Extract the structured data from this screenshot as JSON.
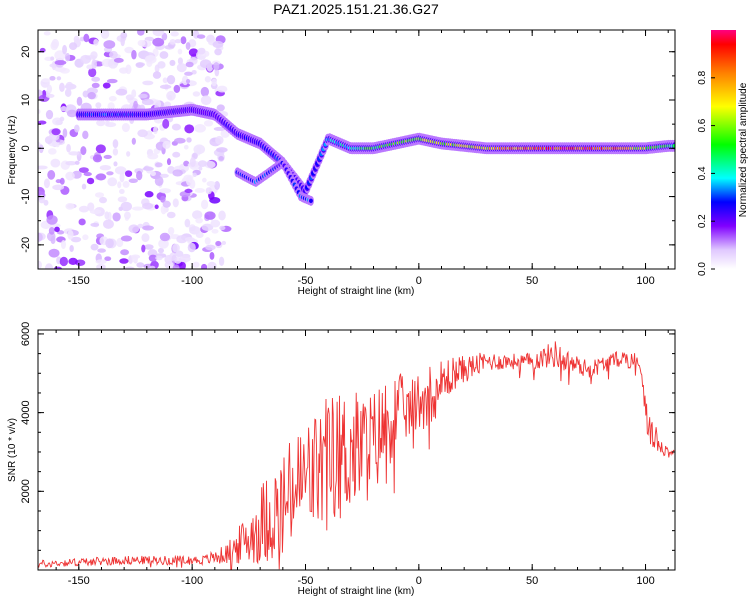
{
  "title": "PAZ1.2025.151.21.36.G27",
  "chart_data": [
    {
      "type": "heatmap",
      "xlabel": "Height of straight line (km)",
      "ylabel": "Frequency (Hz)",
      "xlim": [
        -168,
        113
      ],
      "ylim": [
        -25,
        24.5
      ],
      "xticks": [
        "-150",
        "-100",
        "-50",
        "0",
        "50",
        "100"
      ],
      "yticks": [
        "-20",
        "-10",
        "0",
        "10",
        "20"
      ],
      "colorbar": {
        "label": "Normalized spectral amplitude",
        "range": [
          0,
          1
        ],
        "ticks": [
          "0.0",
          "0.2",
          "0.4",
          "0.6",
          "0.8"
        ]
      },
      "ridge": [
        {
          "x": -150,
          "freq": 7,
          "amp": 0.25
        },
        {
          "x": -140,
          "freq": 7,
          "amp": 0.3
        },
        {
          "x": -120,
          "freq": 7,
          "amp": 0.25
        },
        {
          "x": -100,
          "freq": 8,
          "amp": 0.2
        },
        {
          "x": -90,
          "freq": 7,
          "amp": 0.2
        },
        {
          "x": -80,
          "freq": 3,
          "amp": 0.25
        },
        {
          "x": -70,
          "freq": 1,
          "amp": 0.25
        },
        {
          "x": -60,
          "freq": -3,
          "amp": 0.3
        },
        {
          "x": -50,
          "freq": -9,
          "amp": 0.25
        },
        {
          "x": -40,
          "freq": 2,
          "amp": 0.35
        },
        {
          "x": -30,
          "freq": 0,
          "amp": 0.4
        },
        {
          "x": -20,
          "freq": 0,
          "amp": 0.5
        },
        {
          "x": -10,
          "freq": 1,
          "amp": 0.55
        },
        {
          "x": 0,
          "freq": 2,
          "amp": 0.6
        },
        {
          "x": 10,
          "freq": 1,
          "amp": 0.6
        },
        {
          "x": 20,
          "freq": 0.5,
          "amp": 0.65
        },
        {
          "x": 30,
          "freq": 0,
          "amp": 0.7
        },
        {
          "x": 40,
          "freq": 0,
          "amp": 0.75
        },
        {
          "x": 50,
          "freq": 0,
          "amp": 0.85
        },
        {
          "x": 60,
          "freq": 0,
          "amp": 0.9
        },
        {
          "x": 70,
          "freq": 0,
          "amp": 0.88
        },
        {
          "x": 80,
          "freq": 0,
          "amp": 0.85
        },
        {
          "x": 90,
          "freq": 0,
          "amp": 0.75
        },
        {
          "x": 100,
          "freq": 0,
          "amp": 0.6
        },
        {
          "x": 110,
          "freq": 0.5,
          "amp": 0.45
        }
      ],
      "branch": [
        {
          "x": -80,
          "freq": -5,
          "amp": 0.25
        },
        {
          "x": -72,
          "freq": -7,
          "amp": 0.3
        },
        {
          "x": -60,
          "freq": -3,
          "amp": 0.25
        },
        {
          "x": -52,
          "freq": -10,
          "amp": 0.3
        },
        {
          "x": -47,
          "freq": -11,
          "amp": 0.3
        }
      ]
    },
    {
      "type": "line",
      "xlabel": "Height of straight line (km)",
      "ylabel": "SNR (10 * v/v)",
      "xlim": [
        -168,
        113
      ],
      "ylim": [
        0,
        6100
      ],
      "xticks": [
        "-150",
        "-100",
        "-50",
        "0",
        "50",
        "100"
      ],
      "yticks": [
        "2000",
        "4000",
        "6000"
      ],
      "series": [
        {
          "color": "#ee3333",
          "x": [
            -168,
            -150,
            -130,
            -110,
            -95,
            -85,
            -80,
            -75,
            -70,
            -65,
            -60,
            -55,
            -50,
            -45,
            -40,
            -35,
            -30,
            -25,
            -20,
            -15,
            -10,
            -8,
            -5,
            0,
            5,
            10,
            15,
            20,
            25,
            30,
            40,
            50,
            60,
            65,
            70,
            75,
            80,
            90,
            95,
            98,
            100,
            102,
            105,
            110,
            113
          ],
          "y": [
            150,
            200,
            250,
            250,
            250,
            400,
            600,
            800,
            1200,
            1400,
            1600,
            2000,
            2300,
            2500,
            2800,
            2900,
            3000,
            3100,
            3200,
            3700,
            4000,
            4100,
            4000,
            4300,
            4500,
            4700,
            5000,
            5100,
            5200,
            5300,
            5300,
            5300,
            5500,
            5300,
            5200,
            5100,
            5200,
            5400,
            5300,
            5200,
            4200,
            3500,
            3300,
            3000,
            3000
          ],
          "amplitude": [
            100,
            100,
            110,
            110,
            120,
            250,
            450,
            700,
            1000,
            1200,
            1400,
            1500,
            1600,
            1600,
            1700,
            1700,
            1600,
            1500,
            1400,
            1200,
            1100,
            900,
            700,
            800,
            800,
            700,
            450,
            350,
            300,
            250,
            200,
            220,
            350,
            300,
            250,
            220,
            220,
            200,
            250,
            300,
            500,
            400,
            300,
            150,
            100
          ]
        }
      ]
    }
  ]
}
